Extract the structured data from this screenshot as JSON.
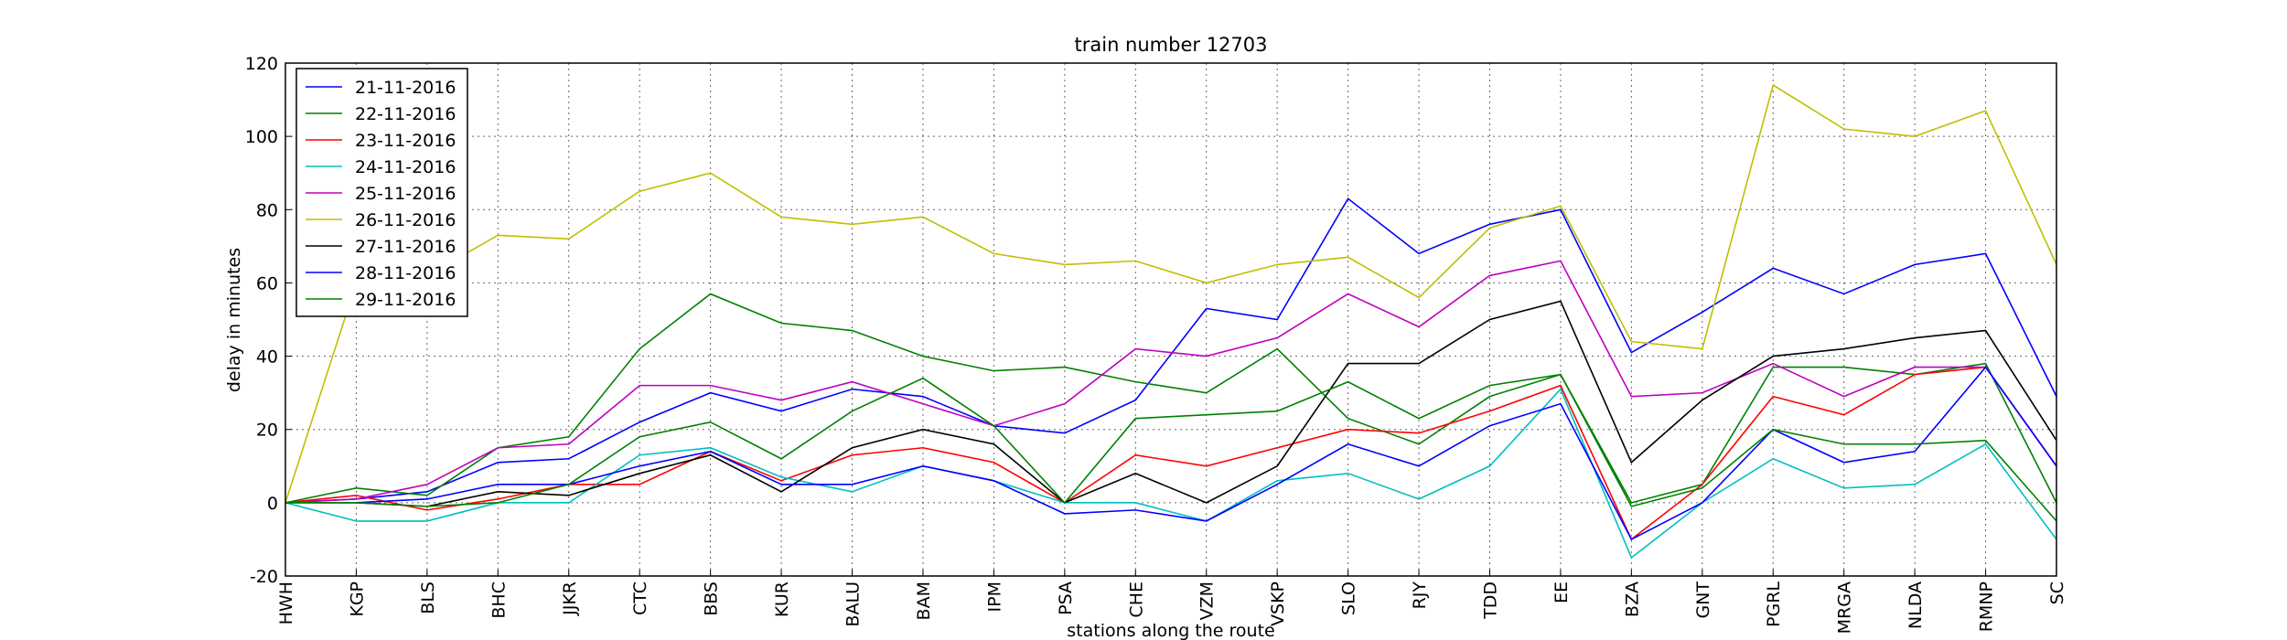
{
  "chart_data": {
    "type": "line",
    "title": "train number 12703",
    "xlabel": "stations along the route",
    "ylabel": "delay in minutes",
    "categories": [
      "HWH",
      "KGP",
      "BLS",
      "BHC",
      "JJKR",
      "CTC",
      "BBS",
      "KUR",
      "BALU",
      "BAM",
      "IPM",
      "PSA",
      "CHE",
      "VZM",
      "VSKP",
      "SLO",
      "RJY",
      "TDD",
      "EE",
      "BZA",
      "GNT",
      "PGRL",
      "MRGA",
      "NLDA",
      "RMNP",
      "SC"
    ],
    "ylim": [
      -20,
      120
    ],
    "yticks": [
      -20,
      0,
      20,
      40,
      60,
      80,
      100,
      120
    ],
    "grid": true,
    "legend": "upper left",
    "series": [
      {
        "name": "21-11-2016",
        "color": "#0000ff",
        "values": [
          0,
          1,
          3,
          11,
          12,
          22,
          30,
          25,
          31,
          29,
          21,
          19,
          28,
          53,
          50,
          83,
          68,
          76,
          80,
          41,
          52,
          64,
          57,
          65,
          68,
          29
        ]
      },
      {
        "name": "22-11-2016",
        "color": "#008000",
        "values": [
          0,
          4,
          2,
          15,
          18,
          42,
          57,
          49,
          47,
          40,
          36,
          37,
          33,
          30,
          42,
          23,
          16,
          29,
          35,
          0,
          5,
          37,
          37,
          35,
          38,
          0
        ]
      },
      {
        "name": "23-11-2016",
        "color": "#ff0000",
        "values": [
          0,
          2,
          -2,
          1,
          5,
          5,
          14,
          6,
          13,
          15,
          11,
          0,
          13,
          10,
          15,
          20,
          19,
          25,
          32,
          -10,
          5,
          29,
          24,
          35,
          37,
          10
        ]
      },
      {
        "name": "24-11-2016",
        "color": "#00bfbf",
        "values": [
          0,
          -5,
          -5,
          0,
          0,
          13,
          15,
          7,
          3,
          10,
          6,
          0,
          0,
          -5,
          6,
          8,
          1,
          10,
          31,
          -15,
          0,
          12,
          4,
          5,
          16,
          -10
        ]
      },
      {
        "name": "25-11-2016",
        "color": "#bf00bf",
        "values": [
          0,
          1,
          5,
          15,
          16,
          32,
          32,
          28,
          33,
          27,
          21,
          27,
          42,
          40,
          45,
          57,
          48,
          62,
          66,
          29,
          30,
          38,
          29,
          37,
          37,
          10
        ]
      },
      {
        "name": "26-11-2016",
        "color": "#bfbf00",
        "values": [
          0,
          60,
          62,
          73,
          72,
          85,
          90,
          78,
          76,
          78,
          68,
          65,
          66,
          60,
          65,
          67,
          56,
          75,
          81,
          44,
          42,
          114,
          102,
          100,
          107,
          65
        ]
      },
      {
        "name": "27-11-2016",
        "color": "#000000",
        "values": [
          0,
          0,
          -1,
          3,
          2,
          8,
          13,
          3,
          15,
          20,
          16,
          0,
          8,
          0,
          10,
          38,
          38,
          50,
          55,
          11,
          28,
          40,
          42,
          45,
          47,
          17
        ]
      },
      {
        "name": "28-11-2016",
        "color": "#0000ff",
        "values": [
          0,
          0,
          1,
          5,
          5,
          10,
          14,
          5,
          5,
          10,
          6,
          -3,
          -2,
          -5,
          5,
          16,
          10,
          21,
          27,
          -10,
          0,
          20,
          11,
          14,
          37,
          10
        ]
      },
      {
        "name": "29-11-2016",
        "color": "#008000",
        "values": [
          0,
          0,
          -1,
          0,
          5,
          18,
          22,
          12,
          25,
          34,
          21,
          0,
          23,
          24,
          25,
          33,
          23,
          32,
          35,
          -1,
          4,
          20,
          16,
          16,
          17,
          -5
        ]
      }
    ]
  }
}
